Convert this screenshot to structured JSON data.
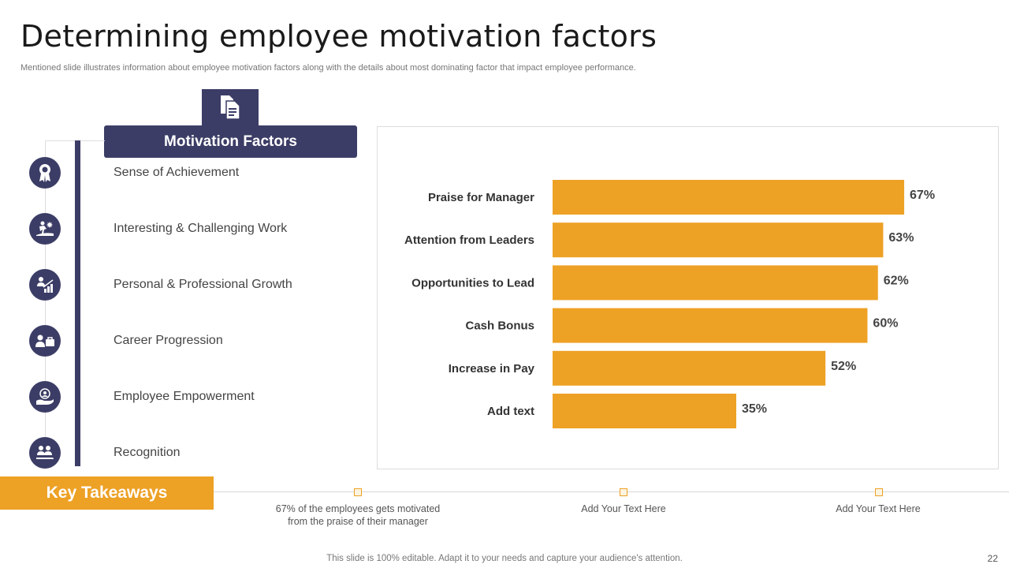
{
  "slide": {
    "title": "Determining employee motivation factors",
    "subtitle": "Mentioned slide illustrates information about employee motivation factors along with the details about most dominating factor that impact employee performance.",
    "footer": "This slide is 100% editable. Adapt it to your needs and capture your audience's attention.",
    "page_number": "22"
  },
  "factors": {
    "header": "Motivation Factors",
    "items": [
      {
        "label": "Sense of Achievement",
        "icon": "award-ribbon-icon"
      },
      {
        "label": "Interesting  & Challenging Work",
        "icon": "climbing-person-icon"
      },
      {
        "label": "Personal & Professional Growth",
        "icon": "growth-chart-person-icon"
      },
      {
        "label": "Career  Progression",
        "icon": "person-briefcase-icon"
      },
      {
        "label": "Employee Empowerment",
        "icon": "hand-team-icon"
      },
      {
        "label": "Recognition",
        "icon": "team-recognition-icon"
      }
    ]
  },
  "chart_data": {
    "type": "bar",
    "orientation": "horizontal",
    "categories": [
      "Praise for Manager",
      "Attention from Leaders",
      "Opportunities to Lead",
      "Cash Bonus",
      "Increase in Pay",
      "Add text"
    ],
    "values": [
      67,
      63,
      62,
      60,
      52,
      35
    ],
    "value_labels": [
      "67%",
      "63%",
      "62%",
      "60%",
      "52%",
      "35%"
    ],
    "color": "#eda125",
    "xlim": [
      0,
      70
    ],
    "title": "",
    "xlabel": "",
    "ylabel": ""
  },
  "takeaways": {
    "title": "Key Takeaways",
    "items": [
      {
        "line1": "67% of the employees gets motivated",
        "line2": "from the praise of their manager"
      },
      {
        "line1": "Add Your Text Here",
        "line2": ""
      },
      {
        "line1": "Add Your Text Here",
        "line2": ""
      }
    ]
  },
  "colors": {
    "navy": "#3c3d66",
    "orange": "#eda125"
  }
}
